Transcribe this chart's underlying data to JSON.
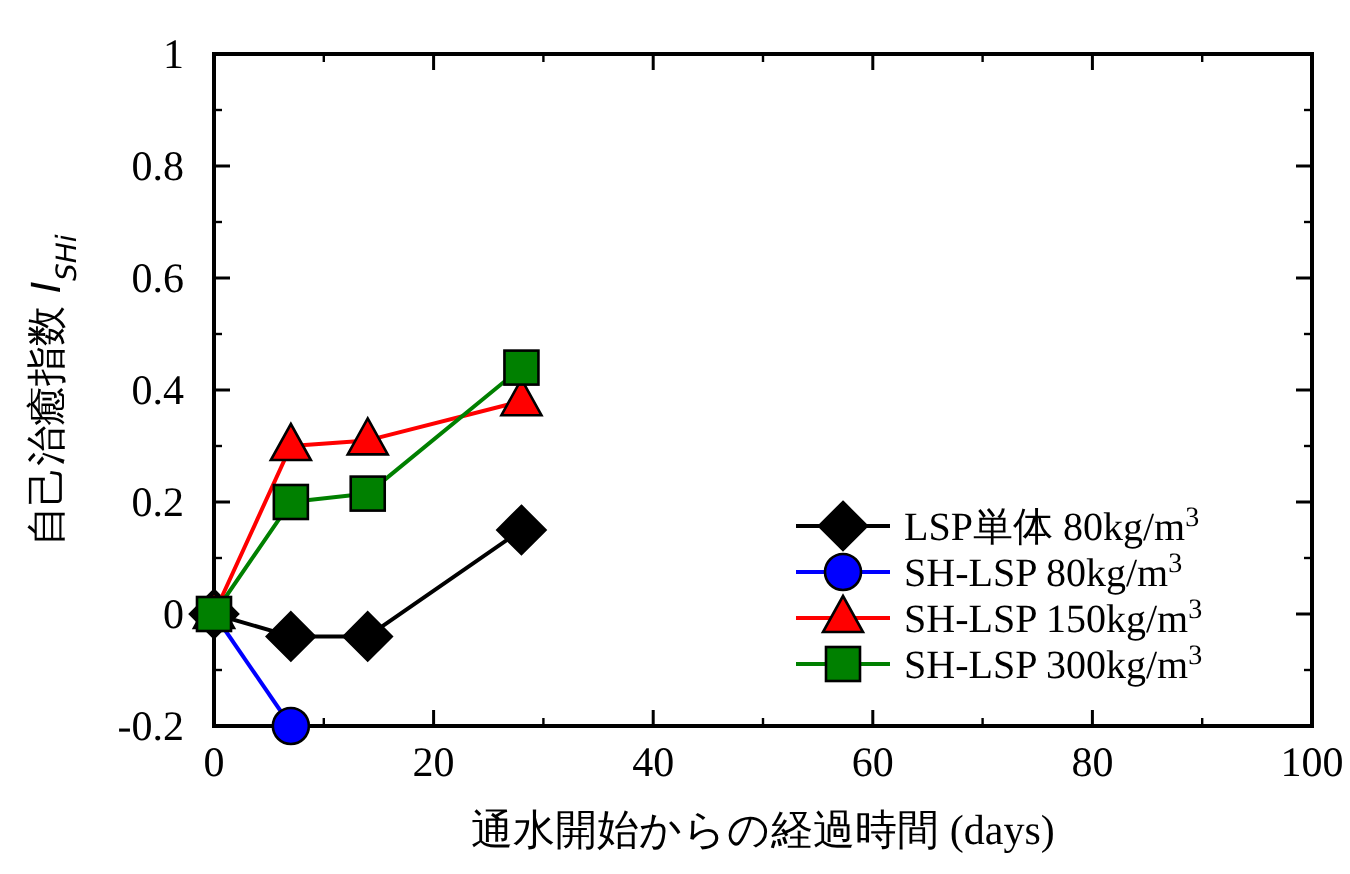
{
  "chart_data": {
    "type": "line",
    "xlabel": "通水開始からの経過時間 (days)",
    "ylabel": "自己治癒指数 *I*$_{SHi}$",
    "xlim": [
      0,
      100
    ],
    "xticks": [
      0,
      20,
      40,
      60,
      80,
      100
    ],
    "ylim": [
      -0.2,
      1
    ],
    "yticks": [
      -0.2,
      0,
      0.2,
      0.4,
      0.6,
      0.8,
      1
    ],
    "grid": false,
    "legend": "right",
    "series": [
      {
        "name": "LSP単体 80kg/m$^{3}$",
        "color": "#000000",
        "marker": "diamond",
        "x": [
          0,
          7,
          14,
          28
        ],
        "values": [
          0,
          -0.04,
          -0.04,
          0.15
        ]
      },
      {
        "name": "SH-LSP 80kg/m$^{3}$",
        "color": "#0000ff",
        "marker": "circle",
        "x": [
          0,
          7
        ],
        "values": [
          0,
          -0.2
        ]
      },
      {
        "name": "SH-LSP 150kg/m$^{3}$",
        "color": "#ff0000",
        "marker": "triangle",
        "x": [
          0,
          7,
          14,
          28
        ],
        "values": [
          0,
          0.3,
          0.31,
          0.38
        ]
      },
      {
        "name": "SH-LSP 300kg/m$^{3}$",
        "color": "#008000",
        "marker": "square",
        "x": [
          0,
          7,
          14,
          28
        ],
        "values": [
          0,
          0.2,
          0.215,
          0.44
        ]
      }
    ]
  }
}
